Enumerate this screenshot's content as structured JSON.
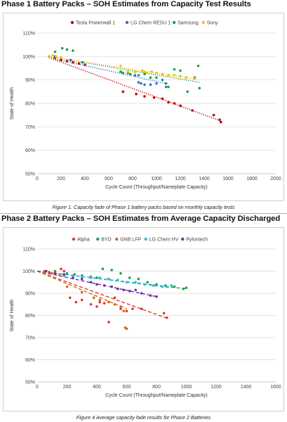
{
  "panel1": {
    "heading": "Phase 1 Battery Packs – SOH Estimates from Capacity Test Results",
    "caption": "Figure 1. Capacity fade of Phase 1 battery packs based on monthly capacity tests"
  },
  "panel2": {
    "heading": "Phase 2 Battery Packs – SOH Estimates from Average Capacity Discharged",
    "caption": "Figure 4 Average capacity fade results for Phase 2 Batteries"
  },
  "chart_data": [
    {
      "type": "scatter",
      "title": "",
      "xlabel": "Cycle Count (Throughput/Nameplate Capacity)",
      "ylabel": "State of Health",
      "xlim": [
        0,
        2000
      ],
      "ylim": [
        50,
        110
      ],
      "xticks": [
        "0",
        "200",
        "400",
        "600",
        "800",
        "1000",
        "1200",
        "1400",
        "1600",
        "1800",
        "2000"
      ],
      "yticks": [
        "50%",
        "60%",
        "70%",
        "80%",
        "90%",
        "100%",
        "110%"
      ],
      "grid": true,
      "legend_position": "top",
      "trendlines": "dotted",
      "series": [
        {
          "name": "Tesla Powerwall 1",
          "color": "#c00000",
          "points": [
            [
              150,
              99.5
            ],
            [
              200,
              98.5
            ],
            [
              250,
              98
            ],
            [
              300,
              97.5
            ],
            [
              350,
              97
            ],
            [
              400,
              96.5
            ],
            [
              720,
              85
            ],
            [
              830,
              84
            ],
            [
              900,
              83
            ],
            [
              980,
              82.5
            ],
            [
              1050,
              82
            ],
            [
              1100,
              80.5
            ],
            [
              1150,
              80
            ],
            [
              1200,
              79
            ],
            [
              1300,
              77
            ],
            [
              1480,
              75
            ],
            [
              1530,
              73
            ],
            [
              1540,
              72
            ]
          ],
          "trend": [
            [
              100,
              99.5
            ],
            [
              1540,
              72.5
            ]
          ]
        },
        {
          "name": "LG Chem RESU 1",
          "color": "#2f6fc9",
          "points": [
            [
              100,
              100
            ],
            [
              150,
              100
            ],
            [
              200,
              99.5
            ],
            [
              280,
              98.5
            ],
            [
              380,
              97.5
            ],
            [
              700,
              93.5
            ],
            [
              760,
              93
            ],
            [
              820,
              92
            ],
            [
              850,
              89
            ],
            [
              870,
              88.5
            ],
            [
              900,
              88
            ],
            [
              950,
              88
            ],
            [
              1000,
              88.5
            ],
            [
              1080,
              88.5
            ]
          ],
          "trend": [
            [
              100,
              99.5
            ],
            [
              1080,
              88.5
            ]
          ]
        },
        {
          "name": "Samsung",
          "color": "#1f9e4a",
          "points": [
            [
              100,
              100
            ],
            [
              150,
              102
            ],
            [
              210,
              103.5
            ],
            [
              250,
              103
            ],
            [
              300,
              102.5
            ],
            [
              700,
              93.5
            ],
            [
              720,
              93
            ],
            [
              780,
              92.5
            ],
            [
              820,
              93.5
            ],
            [
              850,
              92
            ],
            [
              900,
              92.5
            ],
            [
              950,
              91
            ],
            [
              1000,
              91
            ],
            [
              1050,
              90
            ],
            [
              1080,
              87
            ],
            [
              1100,
              87
            ],
            [
              1150,
              94.5
            ],
            [
              1200,
              94
            ],
            [
              1260,
              85
            ],
            [
              1320,
              91
            ],
            [
              1350,
              96
            ],
            [
              1360,
              86.5
            ]
          ],
          "trend": [
            [
              100,
              100
            ],
            [
              1360,
              89
            ]
          ]
        },
        {
          "name": "Sony",
          "color": "#f5c000",
          "points": [
            [
              100,
              100
            ],
            [
              130,
              100.5
            ],
            [
              160,
              100
            ],
            [
              200,
              99.5
            ],
            [
              700,
              96
            ],
            [
              760,
              93.5
            ],
            [
              820,
              93.5
            ],
            [
              880,
              94
            ],
            [
              900,
              93.5
            ],
            [
              920,
              93
            ],
            [
              960,
              93.5
            ],
            [
              1000,
              93
            ],
            [
              1050,
              92.5
            ],
            [
              1100,
              92
            ],
            [
              1150,
              92
            ],
            [
              1200,
              91.5
            ],
            [
              1250,
              91
            ],
            [
              1320,
              90.5
            ]
          ],
          "trend": [
            [
              100,
              100
            ],
            [
              1320,
              90.5
            ]
          ]
        }
      ]
    },
    {
      "type": "scatter",
      "title": "",
      "xlabel": "Cycle Count (Throughput/Nameplate Capacity)",
      "ylabel": "State of Health",
      "xlim": [
        0,
        1600
      ],
      "ylim": [
        50,
        110
      ],
      "xticks": [
        "0",
        "200",
        "400",
        "600",
        "800",
        "1000",
        "1200",
        "1400",
        "1600"
      ],
      "yticks": [
        "50%",
        "60%",
        "70%",
        "80%",
        "90%",
        "100%",
        "110%"
      ],
      "grid": true,
      "legend_position": "top",
      "trendlines": "dashed",
      "series": [
        {
          "name": "Alpha",
          "color": "#e03a2a",
          "points": [
            [
              50,
              100
            ],
            [
              80,
              99.5
            ],
            [
              120,
              99
            ],
            [
              160,
              101
            ],
            [
              180,
              100
            ],
            [
              220,
              88
            ],
            [
              260,
              86
            ],
            [
              300,
              87
            ],
            [
              360,
              85
            ],
            [
              400,
              84
            ],
            [
              420,
              86
            ],
            [
              450,
              85.5
            ],
            [
              480,
              77
            ],
            [
              520,
              88
            ],
            [
              560,
              83
            ],
            [
              600,
              82
            ],
            [
              640,
              83
            ],
            [
              700,
              83
            ],
            [
              850,
              81
            ],
            [
              870,
              79
            ]
          ],
          "trend": [
            [
              0,
              100
            ],
            [
              880,
              78.5
            ]
          ]
        },
        {
          "name": "BYD",
          "color": "#1f9e4a",
          "points": [
            [
              60,
              100
            ],
            [
              120,
              100
            ],
            [
              200,
              99
            ],
            [
              250,
              98.5
            ],
            [
              300,
              98
            ],
            [
              360,
              97.5
            ],
            [
              400,
              97
            ],
            [
              440,
              101
            ],
            [
              500,
              100.5
            ],
            [
              560,
              99
            ],
            [
              620,
              97
            ],
            [
              680,
              96.5
            ],
            [
              740,
              95
            ],
            [
              800,
              94
            ],
            [
              860,
              93.5
            ],
            [
              920,
              93
            ],
            [
              980,
              92
            ],
            [
              1000,
              92.5
            ]
          ],
          "trend": [
            [
              0,
              100
            ],
            [
              1000,
              92
            ]
          ]
        },
        {
          "name": "GNB LFP",
          "color": "#d2691e",
          "points": [
            [
              50,
              99.5
            ],
            [
              100,
              99
            ],
            [
              150,
              98.5
            ],
            [
              200,
              93
            ],
            [
              300,
              90.5
            ],
            [
              380,
              88
            ],
            [
              420,
              87
            ],
            [
              480,
              86
            ],
            [
              520,
              85
            ],
            [
              560,
              84
            ],
            [
              580,
              82
            ],
            [
              590,
              74.5
            ],
            [
              600,
              74
            ]
          ],
          "trend": [
            [
              0,
              100
            ],
            [
              600,
              83
            ]
          ]
        },
        {
          "name": "LG Chem HV",
          "color": "#2fb8e0",
          "points": [
            [
              60,
              100
            ],
            [
              120,
              99
            ],
            [
              180,
              98
            ],
            [
              240,
              98
            ],
            [
              300,
              97.5
            ],
            [
              360,
              97
            ],
            [
              420,
              97
            ],
            [
              480,
              96.5
            ],
            [
              540,
              96
            ],
            [
              600,
              95
            ],
            [
              660,
              95
            ],
            [
              720,
              94
            ],
            [
              780,
              93.5
            ],
            [
              840,
              93
            ],
            [
              900,
              93.5
            ]
          ],
          "trend": [
            [
              0,
              100
            ],
            [
              900,
              92.5
            ]
          ]
        },
        {
          "name": "Pylontech",
          "color": "#7030a0",
          "points": [
            [
              60,
              100
            ],
            [
              120,
              99
            ],
            [
              180,
              98.5
            ],
            [
              240,
              97
            ],
            [
              300,
              96.5
            ],
            [
              360,
              95
            ],
            [
              400,
              94
            ],
            [
              450,
              93.5
            ],
            [
              500,
              93
            ],
            [
              540,
              92
            ],
            [
              580,
              91.5
            ],
            [
              620,
              91
            ],
            [
              660,
              91.5
            ],
            [
              700,
              90
            ],
            [
              760,
              89
            ],
            [
              800,
              88.5
            ]
          ],
          "trend": [
            [
              0,
              100
            ],
            [
              800,
              88.5
            ]
          ]
        }
      ]
    }
  ]
}
